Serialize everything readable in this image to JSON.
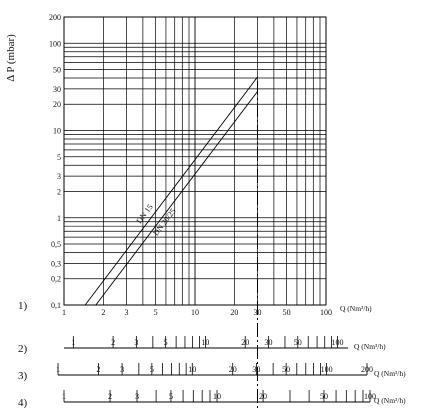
{
  "chart_data": {
    "type": "line",
    "xscale": "log",
    "yscale": "log",
    "xlim": [
      1,
      100
    ],
    "ylim": [
      0.1,
      200
    ],
    "grid": true,
    "xlabel": "Q (Nm³/h)",
    "ylabel": "Δ P (mbar)",
    "y_ticks": [
      0.1,
      0.2,
      0.3,
      0.5,
      1,
      2,
      3,
      5,
      10,
      20,
      30,
      50,
      100,
      200
    ],
    "y_tick_labels": [
      "0,1",
      "0,2",
      "0,3",
      "0,5",
      "1",
      "2",
      "3",
      "5",
      "10",
      "20",
      "30",
      "50",
      "100",
      "200"
    ],
    "series": [
      {
        "name": "DN 15",
        "x": [
          1.45,
          30
        ],
        "y": [
          0.1,
          41
        ]
      },
      {
        "name": "DN 20/25",
        "x": [
          1.75,
          30
        ],
        "y": [
          0.1,
          28
        ]
      }
    ],
    "reference_x": 30,
    "scales": [
      {
        "id": "1)",
        "label": "Q (Nm³/h)",
        "min": 1,
        "max": 100,
        "minor": [
          1.5,
          2,
          3,
          4,
          5,
          6,
          7,
          8,
          9,
          10,
          15,
          20,
          30,
          40,
          50,
          60,
          70,
          80,
          90,
          100
        ],
        "ticks": [
          1,
          2,
          3,
          5,
          10,
          20,
          30,
          50,
          100
        ],
        "tick_labels": [
          "1",
          "2",
          "3",
          "5",
          "10",
          "20",
          "30",
          "50",
          "100"
        ]
      },
      {
        "id": "2)",
        "label": "Q (Nm³/h)",
        "min": 0.85,
        "max": 120,
        "minor": [
          1,
          2,
          3,
          4,
          5,
          6,
          7,
          8,
          9,
          10,
          20,
          30,
          40,
          50,
          60,
          70,
          80,
          90,
          100
        ],
        "ticks": [
          1,
          2,
          3,
          5,
          10,
          20,
          30,
          50,
          100
        ],
        "tick_labels": [
          "1",
          "2",
          "3",
          "5",
          "10",
          "20",
          "30",
          "50",
          "100"
        ]
      },
      {
        "id": "3)",
        "label": "Q (Nm³/h)",
        "min": 1,
        "max": 200,
        "minor": [
          1,
          2,
          3,
          4,
          5,
          6,
          7,
          8,
          9,
          10,
          20,
          30,
          40,
          50,
          60,
          70,
          80,
          90,
          100,
          200
        ],
        "ticks": [
          1,
          2,
          3,
          5,
          10,
          20,
          30,
          50,
          100,
          200
        ],
        "tick_labels": [
          "1",
          "2",
          "3",
          "5",
          "10",
          "20",
          "30",
          "50",
          "100",
          "200"
        ]
      },
      {
        "id": "4)",
        "label": "Q (Nm³/h)",
        "min": 1,
        "max": 100,
        "minor": [
          1,
          2,
          3,
          4,
          5,
          6,
          7,
          8,
          9,
          10,
          20,
          30,
          40,
          50,
          60,
          70,
          80,
          90,
          100
        ],
        "ticks": [
          1,
          2,
          3,
          5,
          10,
          20,
          50,
          100
        ],
        "tick_labels": [
          "1",
          "2",
          "3",
          "5",
          "10",
          "20",
          "50",
          "100"
        ]
      }
    ]
  }
}
